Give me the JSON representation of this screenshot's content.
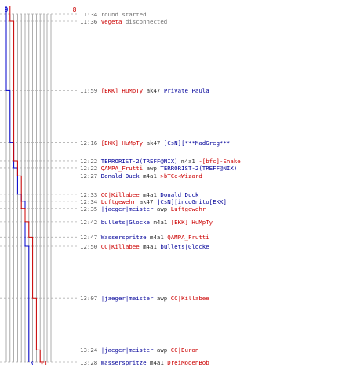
{
  "score_labels": {
    "blue_top": "9",
    "red_top": "8",
    "blue_bottom": "3",
    "red_bottom": "-1"
  },
  "colors": {
    "blue_team": "#0000cc",
    "red_team": "#cc0000",
    "grid": "#9a9a9a",
    "guide": "#b0b0b0",
    "timestamp": "#555555"
  },
  "score_steps": {
    "blue": [
      9,
      8,
      7,
      6,
      5,
      4,
      3
    ],
    "red": [
      8,
      7,
      6,
      5,
      4,
      3,
      2,
      1,
      0,
      -1
    ]
  },
  "events": [
    {
      "time": "11:34",
      "type": "system",
      "text": "round started"
    },
    {
      "time": "11:36",
      "type": "disconnect",
      "player": "Vegeta",
      "player_team": "red",
      "text": "disconnected"
    },
    {
      "time": "11:59",
      "type": "kill",
      "killer": "[EKK] HuMpTy",
      "killer_team": "red",
      "weapon": "ak47",
      "victim": "Private Paula",
      "victim_team": "blue"
    },
    {
      "time": "12:16",
      "type": "kill",
      "killer": "[EKK] HuMpTy",
      "killer_team": "red",
      "weapon": "ak47",
      "victim": "]CsN][***MadGreg***",
      "victim_team": "blue"
    },
    {
      "time": "12:22",
      "type": "kill",
      "killer": "TERRORIST-2(TREFF@NIX)",
      "killer_team": "blue",
      "weapon": "m4a1",
      "victim": "-[bfc]-Snake",
      "victim_team": "red"
    },
    {
      "time": "12:22",
      "type": "kill",
      "killer": "QAMPA_Frutti",
      "killer_team": "red",
      "weapon": "awp",
      "victim": "TERRORIST-2(TREFF@NIX)",
      "victim_team": "blue"
    },
    {
      "time": "12:27",
      "type": "kill",
      "killer": "Donald Duck",
      "killer_team": "blue",
      "weapon": "m4a1",
      "victim": ">bTCe<Wizard",
      "victim_team": "red"
    },
    {
      "time": "12:33",
      "type": "kill",
      "killer": "CC|Killabee",
      "killer_team": "red",
      "weapon": "m4a1",
      "victim": "Donald Duck",
      "victim_team": "blue"
    },
    {
      "time": "12:34",
      "type": "kill",
      "killer": "Luftgewehr",
      "killer_team": "red",
      "weapon": "ak47",
      "victim": "]CsN][incoGnito[EKK]",
      "victim_team": "blue"
    },
    {
      "time": "12:35",
      "type": "kill",
      "killer": "|jaeger|meister",
      "killer_team": "blue",
      "weapon": "awp",
      "victim": "Luftgewehr",
      "victim_team": "red"
    },
    {
      "time": "12:42",
      "type": "kill",
      "killer": "bullets|Glocke",
      "killer_team": "blue",
      "weapon": "m4a1",
      "victim": "[EKK] HuMpTy",
      "victim_team": "red"
    },
    {
      "time": "12:47",
      "type": "kill",
      "killer": "Wasserspritze",
      "killer_team": "blue",
      "weapon": "m4a1",
      "victim": "QAMPA_Frutti",
      "victim_team": "red"
    },
    {
      "time": "12:50",
      "type": "kill",
      "killer": "CC|Killabee",
      "killer_team": "red",
      "weapon": "m4a1",
      "victim": "bullets|Glocke",
      "victim_team": "blue"
    },
    {
      "time": "13:07",
      "type": "kill",
      "killer": "|jaeger|meister",
      "killer_team": "blue",
      "weapon": "awp",
      "victim": "CC|Killabee",
      "victim_team": "red"
    },
    {
      "time": "13:24",
      "type": "kill",
      "killer": "|jaeger|meister",
      "killer_team": "blue",
      "weapon": "awp",
      "victim": "CC|Duron",
      "victim_team": "red"
    },
    {
      "time": "13:28",
      "type": "kill",
      "killer": "Wasserspritze",
      "killer_team": "blue",
      "weapon": "m4a1",
      "victim": "DreiModenBob",
      "victim_team": "red"
    }
  ]
}
